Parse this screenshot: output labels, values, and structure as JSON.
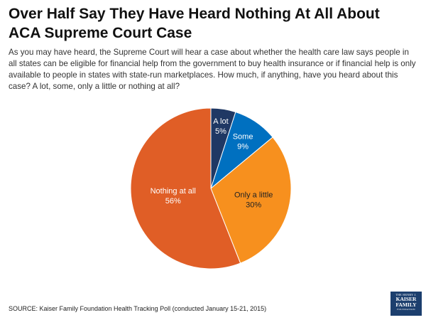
{
  "header": {
    "title": "Over Half Say They Have Heard Nothing At All About ACA Supreme Court Case",
    "question": "As you may have heard, the Supreme Court will hear a case about whether the health care law says people in all states can be eligible for financial help from the government to buy health insurance or if financial help is only available to people in states with state-run marketplaces. How much, if anything, have you heard about this case? A lot, some, only a little or nothing at all?"
  },
  "chart_data": {
    "type": "pie",
    "title": "Over Half Say They Have Heard Nothing At All About ACA Supreme Court Case",
    "slices": [
      {
        "label": "A lot",
        "value": 5,
        "display": "5%",
        "color": "#1f3864"
      },
      {
        "label": "Some",
        "value": 9,
        "display": "9%",
        "color": "#0070c0"
      },
      {
        "label": "Only a little",
        "value": 30,
        "display": "30%",
        "color": "#f7901e"
      },
      {
        "label": "Nothing at all",
        "value": 56,
        "display": "56%",
        "color": "#e05e26"
      }
    ],
    "label_color_inside": "#ffffff",
    "label_color_dark": "#222222"
  },
  "footer": {
    "source": "SOURCE: Kaiser Family Foundation Health Tracking Poll (conducted January 15-21, 2015)",
    "logo": {
      "top": "THE HENRY J.",
      "line1": "KAISER",
      "line2": "FAMILY",
      "bottom": "FOUNDATION"
    }
  }
}
